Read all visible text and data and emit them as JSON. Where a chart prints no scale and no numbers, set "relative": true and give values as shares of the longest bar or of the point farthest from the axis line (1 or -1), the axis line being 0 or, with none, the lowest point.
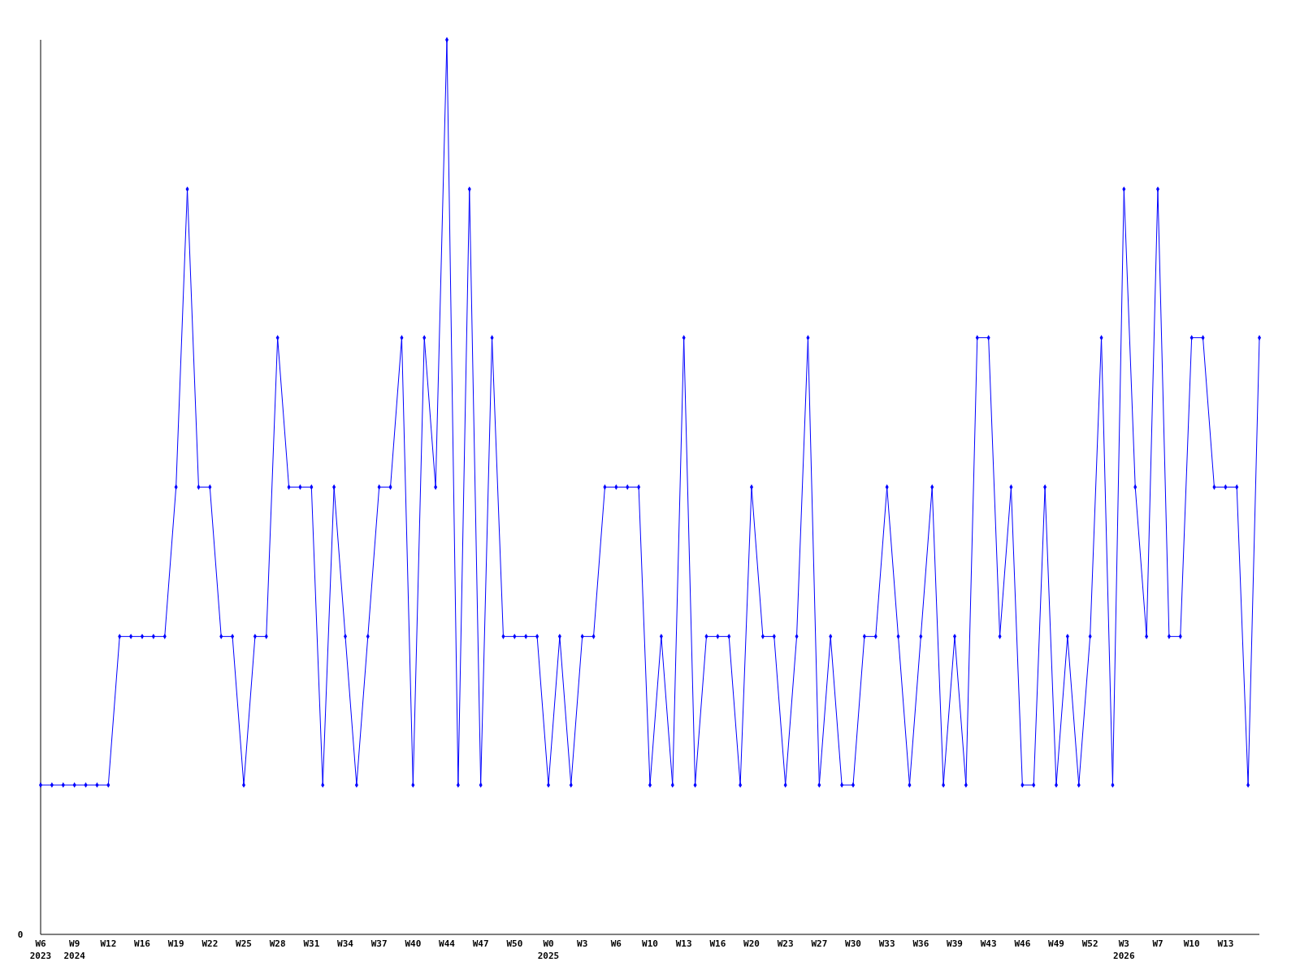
{
  "chart_data": {
    "type": "line",
    "relative": true,
    "marker": "diamond",
    "annotations": [
      "0"
    ],
    "categories": [
      "W6\n2023",
      null,
      null,
      "W9\n2024",
      null,
      null,
      "W12",
      null,
      null,
      "W16",
      null,
      null,
      "W19",
      null,
      null,
      "W22",
      null,
      null,
      "W25",
      null,
      null,
      "W28",
      null,
      null,
      "W31",
      null,
      null,
      "W34",
      null,
      null,
      "W37",
      null,
      null,
      "W40",
      null,
      null,
      "W44",
      null,
      null,
      "W47",
      null,
      null,
      "W50",
      null,
      null,
      "W0\n2025",
      null,
      null,
      "W3",
      null,
      null,
      "W6",
      null,
      null,
      "W10",
      null,
      null,
      "W13",
      null,
      null,
      "W16",
      null,
      null,
      "W20",
      null,
      null,
      "W23",
      null,
      null,
      "W27",
      null,
      null,
      "W30",
      null,
      null,
      "W33",
      null,
      null,
      "W36",
      null,
      null,
      "W39",
      null,
      null,
      "W43",
      null,
      null,
      "W46",
      null,
      null,
      "W49",
      null,
      null,
      "W52",
      null,
      null,
      "W3\n2026",
      null,
      null,
      "W7",
      null,
      null,
      "W10",
      null,
      null,
      "W13",
      null,
      null,
      null
    ],
    "series": [
      {
        "color": "#0000ff",
        "values": [
          0.167,
          0.167,
          0.167,
          0.167,
          0.167,
          0.167,
          0.167,
          0.333,
          0.333,
          0.333,
          0.333,
          0.333,
          0.5,
          0.833,
          0.5,
          0.5,
          0.333,
          0.333,
          0.167,
          0.333,
          0.333,
          0.667,
          0.5,
          0.5,
          0.5,
          0.167,
          0.5,
          0.333,
          0.167,
          0.333,
          0.5,
          0.5,
          0.667,
          0.167,
          0.667,
          0.5,
          1,
          0.167,
          0.833,
          0.167,
          0.667,
          0.333,
          0.333,
          0.333,
          0.333,
          0.167,
          0.333,
          0.167,
          0.333,
          0.333,
          0.5,
          0.5,
          0.5,
          0.5,
          0.167,
          0.333,
          0.167,
          0.667,
          0.167,
          0.333,
          0.333,
          0.333,
          0.167,
          0.5,
          0.333,
          0.333,
          0.167,
          0.333,
          0.667,
          0.167,
          0.333,
          0.167,
          0.167,
          0.333,
          0.333,
          0.5,
          0.333,
          0.167,
          0.333,
          0.5,
          0.167,
          0.333,
          0.167,
          0.667,
          0.667,
          0.333,
          0.5,
          0.167,
          0.167,
          0.5,
          0.167,
          0.333,
          0.167,
          0.333,
          0.667,
          0.167,
          0.833,
          0.5,
          0.333,
          0.833,
          0.333,
          0.333,
          0.667,
          0.667,
          0.5,
          0.5,
          0.5,
          0.167,
          0.667
        ]
      }
    ]
  }
}
